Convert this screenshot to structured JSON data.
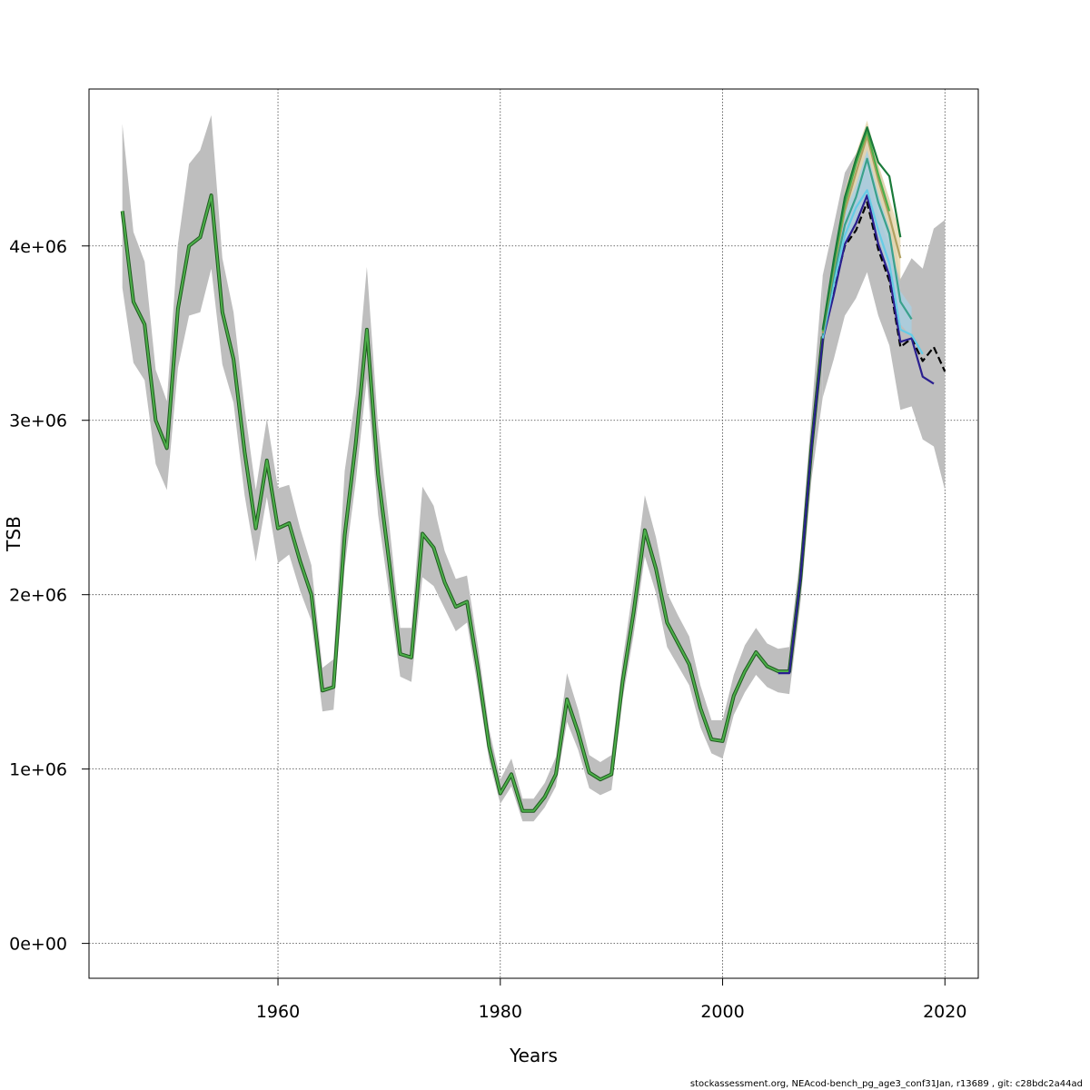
{
  "chart_data": {
    "type": "line",
    "title": "",
    "xlabel": "Years",
    "ylabel": "TSB",
    "xlim": [
      1943,
      2023
    ],
    "ylim": [
      -200000,
      4900000
    ],
    "x_ticks": [
      1960,
      1980,
      2000,
      2020
    ],
    "x_tick_labels": [
      "1960",
      "1980",
      "2000",
      "2020"
    ],
    "y_ticks": [
      0,
      1000000,
      2000000,
      3000000,
      4000000
    ],
    "y_tick_labels": [
      "0e+00",
      "1e+06",
      "2e+06",
      "3e+06",
      "4e+06"
    ],
    "grid": true,
    "grid_style": "dotted",
    "band_color": "#bebebe",
    "base_color": "#4daf4a",
    "base_edge_color": "#1f5a1f",
    "main": {
      "years": [
        1946,
        1947,
        1948,
        1949,
        1950,
        1951,
        1952,
        1953,
        1954,
        1955,
        1956,
        1957,
        1958,
        1959,
        1960,
        1961,
        1962,
        1963,
        1964,
        1965,
        1966,
        1967,
        1968,
        1969,
        1970,
        1971,
        1972,
        1973,
        1974,
        1975,
        1976,
        1977,
        1978,
        1979,
        1980,
        1981,
        1982,
        1983,
        1984,
        1985,
        1986,
        1987,
        1988,
        1989,
        1990,
        1991,
        1992,
        1993,
        1994,
        1995,
        1996,
        1997,
        1998,
        1999,
        2000,
        2001,
        2002,
        2003,
        2004,
        2005,
        2006,
        2007,
        2008,
        2009
      ],
      "values": [
        4200000,
        3680000,
        3550000,
        3000000,
        2840000,
        3640000,
        4000000,
        4050000,
        4290000,
        3620000,
        3350000,
        2820000,
        2380000,
        2770000,
        2380000,
        2410000,
        2190000,
        2000000,
        1450000,
        1470000,
        2340000,
        2870000,
        3520000,
        2690000,
        2190000,
        1660000,
        1640000,
        2350000,
        2270000,
        2070000,
        1930000,
        1960000,
        1570000,
        1130000,
        860000,
        970000,
        760000,
        760000,
        840000,
        970000,
        1400000,
        1210000,
        980000,
        940000,
        970000,
        1500000,
        1900000,
        2370000,
        2150000,
        1840000,
        1720000,
        1600000,
        1350000,
        1170000,
        1160000,
        1420000,
        1560000,
        1670000,
        1590000,
        1560000,
        1560000,
        2090000,
        2850000,
        3480000
      ],
      "lower": [
        3760000,
        3330000,
        3230000,
        2750000,
        2600000,
        3300000,
        3600000,
        3620000,
        3870000,
        3320000,
        3100000,
        2570000,
        2190000,
        2560000,
        2180000,
        2230000,
        2020000,
        1850000,
        1330000,
        1340000,
        2160000,
        2650000,
        3240000,
        2460000,
        2000000,
        1530000,
        1500000,
        2100000,
        2050000,
        1920000,
        1790000,
        1840000,
        1460000,
        1050000,
        800000,
        900000,
        700000,
        700000,
        780000,
        900000,
        1270000,
        1110000,
        890000,
        850000,
        880000,
        1400000,
        1770000,
        2220000,
        2010000,
        1700000,
        1590000,
        1480000,
        1240000,
        1090000,
        1060000,
        1310000,
        1440000,
        1540000,
        1470000,
        1440000,
        1430000,
        1950000,
        2660000,
        3130000
      ],
      "upper": [
        4700000,
        4080000,
        3910000,
        3290000,
        3110000,
        4010000,
        4470000,
        4550000,
        4750000,
        3930000,
        3620000,
        3070000,
        2600000,
        3010000,
        2610000,
        2630000,
        2380000,
        2170000,
        1580000,
        1630000,
        2710000,
        3150000,
        3880000,
        2970000,
        2410000,
        1810000,
        1810000,
        2620000,
        2510000,
        2250000,
        2090000,
        2110000,
        1700000,
        1230000,
        940000,
        1060000,
        830000,
        830000,
        920000,
        1070000,
        1550000,
        1340000,
        1080000,
        1040000,
        1080000,
        1620000,
        2060000,
        2570000,
        2330000,
        2010000,
        1880000,
        1760000,
        1480000,
        1280000,
        1280000,
        1540000,
        1710000,
        1810000,
        1720000,
        1690000,
        1700000,
        2230000,
        3040000,
        3830000
      ]
    },
    "recent_band": {
      "years": [
        2009,
        2010,
        2011,
        2012,
        2013,
        2014,
        2015,
        2016,
        2017,
        2018,
        2019,
        2020
      ],
      "lower": [
        3130000,
        3350000,
        3600000,
        3700000,
        3850000,
        3600000,
        3430000,
        3060000,
        3080000,
        2890000,
        2850000,
        2600000
      ],
      "upper": [
        3830000,
        4120000,
        4420000,
        4530000,
        4700000,
        4460000,
        4270000,
        3810000,
        3930000,
        3870000,
        4100000,
        4150000
      ]
    },
    "peels": [
      {
        "color": "#e8d8b0",
        "years": [
          2009,
          2010,
          2011,
          2012,
          2013,
          2014,
          2015,
          2016
        ],
        "lower": [
          3480000,
          3800000,
          4080000,
          4280000,
          4450000,
          4180000,
          4000000,
          3800000
        ],
        "upper": [
          3570000,
          3950000,
          4320000,
          4530000,
          4720000,
          4470000,
          4270000,
          4070000
        ]
      },
      {
        "color": "#a9cfe0",
        "years": [
          2009,
          2010,
          2011,
          2012,
          2013,
          2014,
          2015,
          2016,
          2017
        ],
        "lower": [
          3460000,
          3750000,
          4000000,
          4150000,
          4300000,
          4050000,
          3850000,
          3550000,
          3480000
        ],
        "upper": [
          3540000,
          3880000,
          4200000,
          4350000,
          4550000,
          4300000,
          4100000,
          3740000,
          3650000
        ]
      }
    ],
    "series": [
      {
        "color": "#000000",
        "dash": true,
        "years": [
          2009,
          2010,
          2011,
          2012,
          2013,
          2014,
          2015,
          2016,
          2017,
          2018,
          2019,
          2020
        ],
        "values": [
          3480000,
          3750000,
          4000000,
          4090000,
          4250000,
          3980000,
          3800000,
          3420000,
          3470000,
          3340000,
          3420000,
          3280000
        ]
      },
      {
        "color": "#2a1f8f",
        "dash": false,
        "years": [
          2005,
          2006,
          2007,
          2008,
          2009,
          2010,
          2011,
          2012,
          2013,
          2014,
          2015,
          2016,
          2017,
          2018,
          2019
        ],
        "values": [
          1550000,
          1550000,
          2090000,
          2850000,
          3460000,
          3720000,
          4010000,
          4130000,
          4290000,
          4010000,
          3830000,
          3450000,
          3470000,
          3250000,
          3210000
        ]
      },
      {
        "color": "#66cce6",
        "dash": false,
        "years": [
          2009,
          2010,
          2011,
          2012,
          2013,
          2014,
          2015,
          2016,
          2017,
          2018
        ],
        "values": [
          3470000,
          3780000,
          4060000,
          4220000,
          4320000,
          4090000,
          3900000,
          3520000,
          3490000,
          3380000
        ]
      },
      {
        "color": "#3aa18c",
        "dash": false,
        "years": [
          2009,
          2010,
          2011,
          2012,
          2013,
          2014,
          2015,
          2016,
          2017
        ],
        "values": [
          3490000,
          3830000,
          4120000,
          4280000,
          4500000,
          4250000,
          4070000,
          3680000,
          3580000
        ]
      },
      {
        "color": "#b0a060",
        "dash": false,
        "years": [
          2009,
          2010,
          2011,
          2012,
          2013,
          2014,
          2015,
          2016
        ],
        "values": [
          3500000,
          3870000,
          4200000,
          4420000,
          4630000,
          4380000,
          4170000,
          3930000
        ]
      },
      {
        "color": "#4daf4a",
        "dash": false,
        "years": [
          2009,
          2010,
          2011,
          2012,
          2013,
          2014,
          2015
        ],
        "values": [
          3510000,
          3890000,
          4240000,
          4470000,
          4660000,
          4410000,
          4200000
        ]
      },
      {
        "color": "#1a7a3a",
        "dash": false,
        "years": [
          2009,
          2010,
          2011,
          2012,
          2013,
          2014,
          2015,
          2016
        ],
        "values": [
          3520000,
          3920000,
          4280000,
          4500000,
          4680000,
          4480000,
          4400000,
          4050000
        ]
      }
    ]
  },
  "footer": "stockassessment.org, NEAcod-bench_pg_age3_conf31Jan, r13689 , git: c28bdc2a44ad"
}
